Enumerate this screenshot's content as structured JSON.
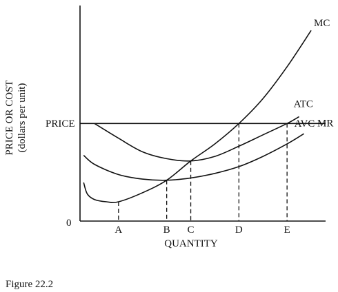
{
  "figure_caption": "Figure 22.2",
  "chart_data": {
    "type": "line",
    "title": "",
    "xlabel": "QUANTITY",
    "ylabel_line1": "PRICE OR COST",
    "ylabel_line2": "(dollars per unit)",
    "origin_label": "0",
    "price_label": "PRICE",
    "x_ticks": [
      {
        "label": "A",
        "x": 1.0
      },
      {
        "label": "B",
        "x": 3.0
      },
      {
        "label": "C",
        "x": 4.0
      },
      {
        "label": "D",
        "x": 6.0
      },
      {
        "label": "E",
        "x": 8.0
      }
    ],
    "xlim": [
      -0.6,
      9.6
    ],
    "ylim": [
      0,
      9.5
    ],
    "price_level": 4.3,
    "grid": false,
    "legend": "curve labels at line ends",
    "series": [
      {
        "name": "MC",
        "points": [
          [
            -0.45,
            1.7
          ],
          [
            -0.3,
            1.2
          ],
          [
            0,
            0.95
          ],
          [
            0.5,
            0.85
          ],
          [
            1,
            0.85
          ],
          [
            2,
            1.25
          ],
          [
            3,
            1.8
          ],
          [
            4,
            2.65
          ],
          [
            5,
            3.4
          ],
          [
            6,
            4.3
          ],
          [
            7,
            5.4
          ],
          [
            8,
            6.8
          ],
          [
            9,
            8.4
          ]
        ]
      },
      {
        "name": "ATC",
        "points": [
          [
            0.0,
            4.3
          ],
          [
            1,
            3.65
          ],
          [
            2,
            3.05
          ],
          [
            3,
            2.75
          ],
          [
            4,
            2.65
          ],
          [
            5,
            2.85
          ],
          [
            6,
            3.3
          ],
          [
            7,
            3.8
          ],
          [
            8,
            4.3
          ],
          [
            8.5,
            4.6
          ]
        ]
      },
      {
        "name": "AVC",
        "points": [
          [
            -0.45,
            2.9
          ],
          [
            0,
            2.5
          ],
          [
            1,
            2.05
          ],
          [
            2,
            1.85
          ],
          [
            3,
            1.8
          ],
          [
            4,
            1.9
          ],
          [
            5,
            2.1
          ],
          [
            6,
            2.4
          ],
          [
            7,
            2.85
          ],
          [
            8,
            3.4
          ],
          [
            8.7,
            3.85
          ]
        ]
      },
      {
        "name": "MR",
        "points": [
          [
            -0.6,
            4.3
          ],
          [
            9.6,
            4.3
          ]
        ]
      }
    ],
    "label_anchors": {
      "MC": 9,
      "ATC": 8.5,
      "AVC": 8.7,
      "MR": 9.6
    }
  }
}
